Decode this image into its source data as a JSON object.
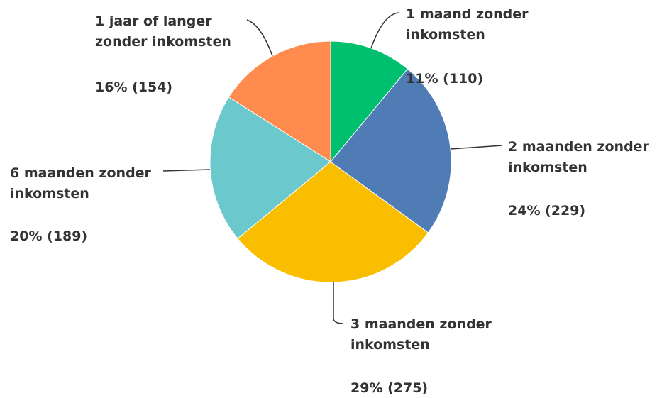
{
  "chart_data": {
    "type": "pie",
    "categories": [
      "1 maand zonder inkomsten",
      "2 maanden zonder inkomsten",
      "3 maanden zonder inkomsten",
      "6 maanden zonder inkomsten",
      "1 jaar of langer zonder inkomsten"
    ],
    "values": [
      11,
      24,
      29,
      20,
      16
    ],
    "value_labels": [
      "11% (110)",
      "24% (229)",
      "29% (275)",
      "20% (189)",
      "16% (154)"
    ],
    "colors": [
      "#00bf6f",
      "#507cb6",
      "#f9be00",
      "#6bc8cd",
      "#ff8b4f"
    ]
  }
}
